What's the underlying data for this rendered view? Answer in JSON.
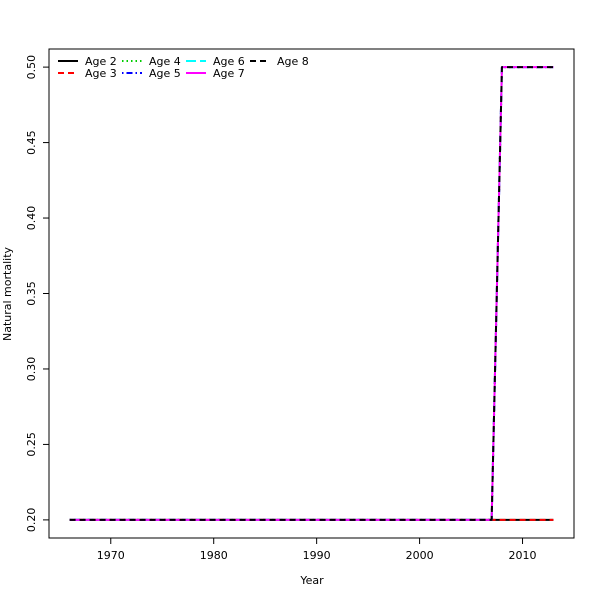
{
  "chart_data": {
    "type": "line",
    "title": "",
    "xlabel": "Year",
    "ylabel": "Natural mortality",
    "xlim": [
      1964,
      2015
    ],
    "ylim": [
      0.188,
      0.512
    ],
    "xticks": [
      1970,
      1980,
      1990,
      2000,
      2010
    ],
    "yticks": [
      0.2,
      0.25,
      0.3,
      0.35,
      0.4,
      0.45,
      0.5
    ],
    "ytick_labels": [
      "0.20",
      "0.25",
      "0.30",
      "0.35",
      "0.40",
      "0.45",
      "0.50"
    ],
    "grid": false,
    "legend_position": "top-left",
    "x_start": 1966,
    "x_end": 2013,
    "series": [
      {
        "name": "Age 2",
        "color": "#000000",
        "dash": "solid",
        "breaks": [],
        "segments": [
          [
            1966,
            0.2
          ],
          [
            2013,
            0.2
          ]
        ]
      },
      {
        "name": "Age 3",
        "color": "#ff0000",
        "dash": "dashed",
        "segments": [
          [
            1966,
            0.2
          ],
          [
            2013,
            0.2
          ]
        ]
      },
      {
        "name": "Age 4",
        "color": "#00cd00",
        "dash": "dotted",
        "segments": [
          [
            1966,
            0.2
          ],
          [
            2007,
            0.2
          ],
          [
            2008,
            0.5
          ],
          [
            2013,
            0.5
          ]
        ]
      },
      {
        "name": "Age 5",
        "color": "#0000ff",
        "dash": "dotdash",
        "segments": [
          [
            1966,
            0.2
          ],
          [
            2007,
            0.2
          ],
          [
            2008,
            0.5
          ],
          [
            2013,
            0.5
          ]
        ]
      },
      {
        "name": "Age 6",
        "color": "#00ffff",
        "dash": "longdash",
        "segments": [
          [
            1966,
            0.2
          ],
          [
            2007,
            0.2
          ],
          [
            2008,
            0.5
          ],
          [
            2013,
            0.5
          ]
        ]
      },
      {
        "name": "Age 7",
        "color": "#ff00ff",
        "dash": "solid",
        "segments": [
          [
            1966,
            0.2
          ],
          [
            2007,
            0.2
          ],
          [
            2008,
            0.5
          ],
          [
            2013,
            0.5
          ]
        ]
      },
      {
        "name": "Age 8",
        "color": "#000000",
        "dash": "dashed",
        "segments": [
          [
            1966,
            0.2
          ],
          [
            2007,
            0.2
          ],
          [
            2008,
            0.5
          ],
          [
            2013,
            0.5
          ]
        ]
      }
    ]
  }
}
